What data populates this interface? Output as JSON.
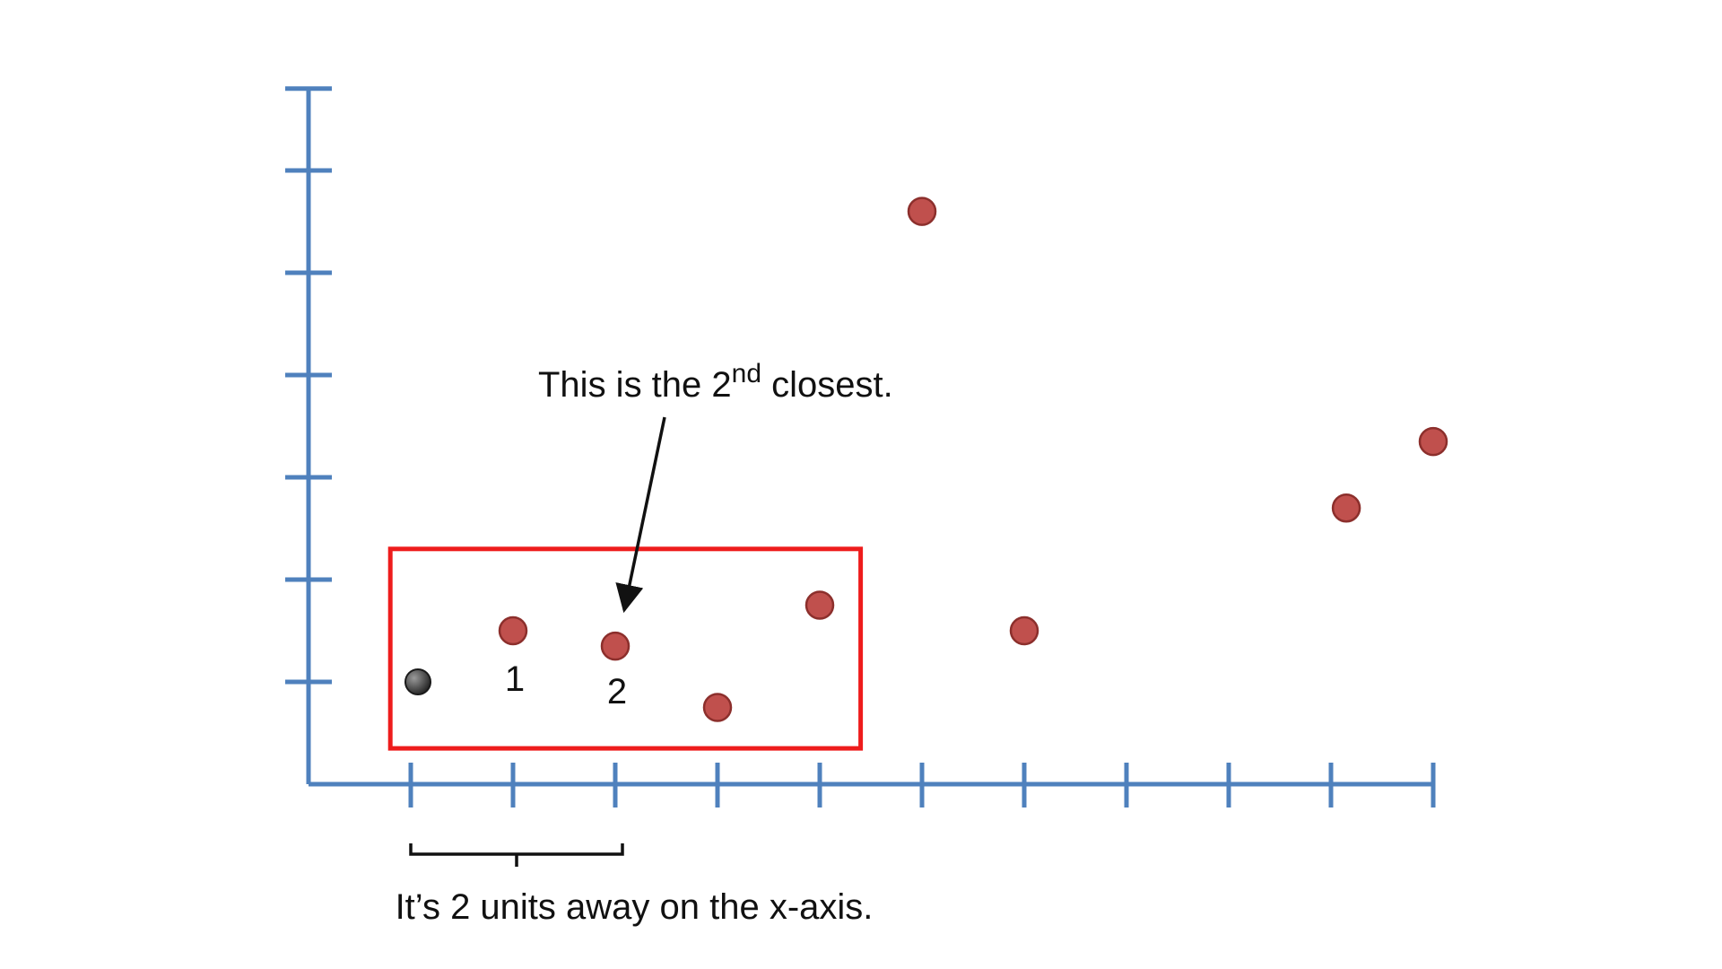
{
  "diagram": {
    "callout_top": {
      "prefix": "This is the 2",
      "superscript": "nd",
      "suffix": " closest."
    },
    "caption_bottom": "It’s 2 units away on the x-axis.",
    "neighbor_labels": [
      "1",
      "2"
    ],
    "colors": {
      "axis": "#4f81bd",
      "point_fill": "#c0504d",
      "point_stroke": "#8c2f2c",
      "query_point": "#3a3a3a",
      "highlight_box": "#ee1c1c",
      "annotation": "#111111"
    },
    "axes": {
      "x_ticks": [
        0,
        1,
        2,
        3,
        4,
        5,
        6,
        7,
        8,
        9,
        10
      ],
      "y_ticks": [
        1,
        2,
        3,
        4,
        5,
        6
      ]
    },
    "query_point": {
      "x": 0,
      "y": 1
    },
    "points": [
      {
        "x": 1,
        "y": 1.5
      },
      {
        "x": 2,
        "y": 1.35
      },
      {
        "x": 3,
        "y": 0.75
      },
      {
        "x": 4,
        "y": 1.75
      },
      {
        "x": 5,
        "y": 5.6
      },
      {
        "x": 6,
        "y": 1.5
      },
      {
        "x": 9.15,
        "y": 2.7
      },
      {
        "x": 10,
        "y": 3.35
      }
    ],
    "highlight_box": {
      "x_range": [
        -0.2,
        4.4
      ],
      "y_range": [
        0.35,
        2.3
      ]
    },
    "brace_range": [
      0,
      2
    ]
  }
}
